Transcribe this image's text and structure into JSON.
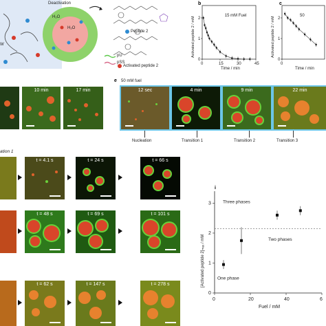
{
  "panel_a": {
    "deactivation": "Deactivation",
    "h2o_1": "H₂O",
    "h2o_2": "H₂O",
    "peptide2": "Peptide 2",
    "activated_peptide2": "Activated peptide 2",
    "legend_pu": "pU",
    "legend_pss": "pSS",
    "partial_w": "W"
  },
  "panel_b": {
    "letter": "b",
    "ylabel": "Activated peptide 2 / mM",
    "xlabel": "Time / min",
    "annotation": "15 mM Fuel",
    "xticks": [
      "0",
      "15",
      "30",
      "45"
    ],
    "yticks": [
      "0",
      "1",
      "2"
    ],
    "chart_data": {
      "type": "scatter",
      "x": [
        1,
        2,
        3,
        4,
        5,
        6,
        8,
        10,
        12,
        15,
        20,
        25,
        30,
        35,
        40
      ],
      "y": [
        2.0,
        1.65,
        1.5,
        1.3,
        1.15,
        1.0,
        0.85,
        0.7,
        0.55,
        0.35,
        0.15,
        0.05,
        0.02,
        0.0,
        0.0
      ],
      "xlim": [
        0,
        45
      ],
      "ylim": [
        0,
        2.6
      ]
    }
  },
  "panel_c": {
    "letter": "c",
    "ylabel": "Activated peptide 2 / mM",
    "xlabel": "Time / min",
    "annotation": "50",
    "xticks": [
      "0"
    ],
    "yticks": [
      "0",
      "1",
      "2"
    ],
    "chart_data": {
      "type": "scatter",
      "x": [
        1,
        2,
        3,
        4,
        5,
        6,
        8,
        10,
        12
      ],
      "y": [
        2.2,
        2.0,
        1.9,
        1.75,
        1.6,
        1.45,
        1.2,
        0.95,
        0.7
      ],
      "xlim": [
        0,
        15
      ],
      "ylim": [
        0,
        2.6
      ]
    }
  },
  "row1_left": {
    "tiles": [
      {
        "label": ""
      },
      {
        "label": "10 min"
      },
      {
        "label": "17 min"
      }
    ]
  },
  "panel_e": {
    "letter": "e",
    "title": "50 mM fuel",
    "tiles": [
      {
        "label": "12 sec"
      },
      {
        "label": "4 min"
      },
      {
        "label": "9 min"
      },
      {
        "label": "22 min"
      }
    ],
    "stages": [
      "Nucleation",
      "Transition 1",
      "Transition 2",
      "Transition 3"
    ]
  },
  "section_heading": "ation 1",
  "grid_rows": [
    {
      "labels": [
        "t = 4.1 s",
        "t = 24 s",
        "t = 66 s"
      ]
    },
    {
      "labels": [
        "t = 48 s",
        "t = 69 s",
        "t = 101 s"
      ]
    },
    {
      "labels": [
        "t = 62 s",
        "t = 147 s",
        "t = 278 s"
      ]
    }
  ],
  "panel_i": {
    "letter": "i",
    "ylabel": "[Activated peptide 2]ₘₐₓ / mM",
    "xlabel": "Fuel / mM",
    "xticks": [
      "0",
      "20",
      "40",
      "6"
    ],
    "yticks": [
      "0",
      "1",
      "2",
      "3"
    ],
    "region_labels": [
      "Three phases",
      "Two phases",
      "One phase"
    ],
    "chart_data": {
      "type": "scatter",
      "x": [
        5,
        15,
        35,
        48
      ],
      "y": [
        0.95,
        1.75,
        2.6,
        2.75
      ],
      "xlim": [
        0,
        60
      ],
      "ylim": [
        0,
        3.4
      ],
      "threshold": 2.15
    }
  }
}
